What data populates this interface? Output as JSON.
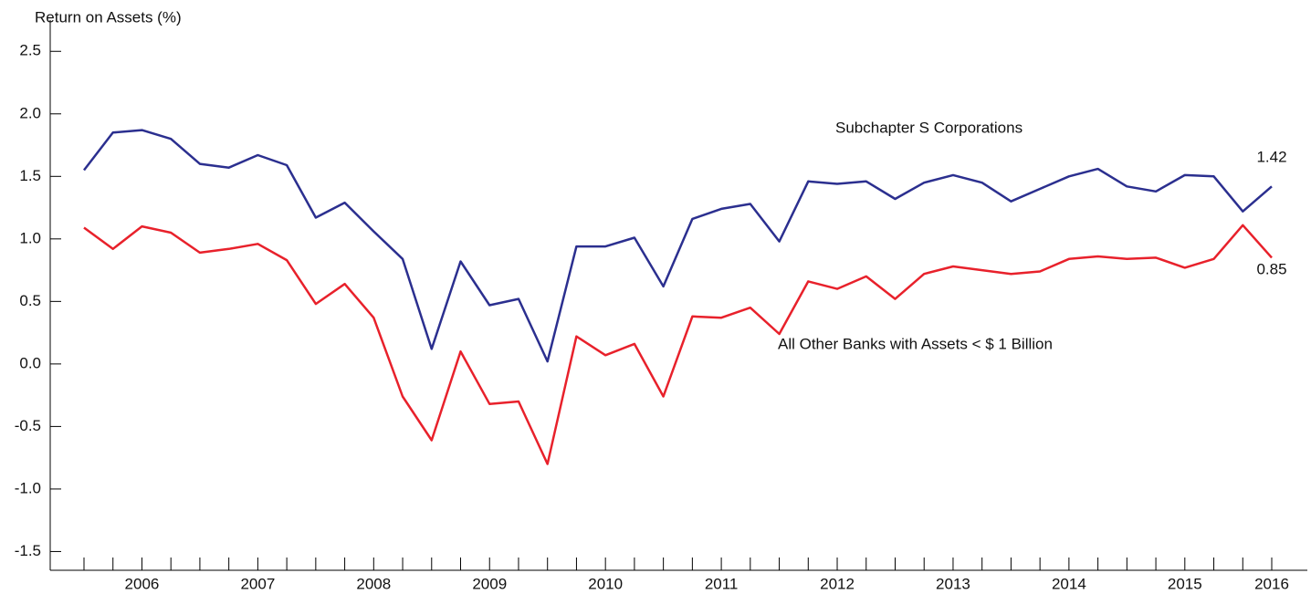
{
  "chart_data": {
    "type": "line",
    "y_label": "Return on Assets (%)",
    "categories": [
      null,
      null,
      "2006",
      null,
      null,
      null,
      "2007",
      null,
      null,
      null,
      "2008",
      null,
      null,
      null,
      "2009",
      null,
      null,
      null,
      "2010",
      null,
      null,
      null,
      "2011",
      null,
      null,
      null,
      "2012",
      null,
      null,
      null,
      "2013",
      null,
      null,
      null,
      "2014",
      null,
      null,
      null,
      "2015",
      null,
      null,
      "2016"
    ],
    "series": [
      {
        "name": "Subchapter S Corporations",
        "color": "#2b2f8f",
        "values": [
          1.55,
          1.85,
          1.87,
          1.8,
          1.6,
          1.57,
          1.67,
          1.59,
          1.17,
          1.29,
          1.06,
          0.84,
          0.12,
          0.82,
          0.47,
          0.52,
          0.02,
          0.94,
          0.94,
          1.01,
          0.62,
          1.16,
          1.24,
          1.28,
          0.98,
          1.46,
          1.44,
          1.46,
          1.32,
          1.45,
          1.51,
          1.45,
          1.3,
          1.4,
          1.5,
          1.56,
          1.42,
          1.38,
          1.51,
          1.5,
          1.22,
          1.42
        ]
      },
      {
        "name": "All Other Banks with Assets < $ 1 Billion",
        "color": "#e8212b",
        "values": [
          1.09,
          0.92,
          1.1,
          1.05,
          0.89,
          0.92,
          0.96,
          0.83,
          0.48,
          0.64,
          0.37,
          -0.26,
          -0.61,
          0.1,
          -0.32,
          -0.3,
          -0.8,
          0.22,
          0.07,
          0.16,
          -0.26,
          0.38,
          0.37,
          0.45,
          0.24,
          0.66,
          0.6,
          0.7,
          0.52,
          0.72,
          0.78,
          0.75,
          0.72,
          0.74,
          0.84,
          0.86,
          0.84,
          0.85,
          0.77,
          0.84,
          1.11,
          0.85
        ]
      }
    ],
    "ylim": [
      -1.65,
      2.75
    ],
    "yticks": [
      2.5,
      {
        "value": 2.0,
        "label": "2.0"
      },
      1.5,
      {
        "value": 1.0,
        "label": "1.0"
      },
      0.5,
      {
        "value": 0.0,
        "label": "0.0"
      },
      -0.5,
      {
        "value": -1.0,
        "label": "-1.0"
      },
      -1.5
    ]
  }
}
